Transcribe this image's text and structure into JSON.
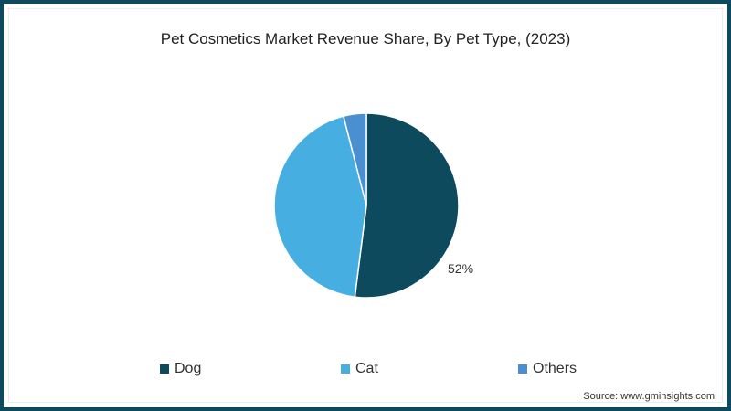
{
  "chart_data": {
    "type": "pie",
    "title": "Pet Cosmetics Market Revenue Share, By Pet Type, (2023)",
    "categories": [
      "Dog",
      "Cat",
      "Others"
    ],
    "values": [
      52,
      44,
      4
    ],
    "colors": [
      "#0d4a5e",
      "#46aee0",
      "#4a8fd0"
    ],
    "data_labels": [
      {
        "category": "Dog",
        "text": "52%"
      }
    ],
    "legend_position": "bottom",
    "start_angle": "12 o'clock, clockwise"
  },
  "title": "Pet Cosmetics Market Revenue Share, By Pet Type, (2023)",
  "data_label": "52%",
  "legend": [
    {
      "label": "Dog",
      "color": "#0d4a5e"
    },
    {
      "label": "Cat",
      "color": "#46aee0"
    },
    {
      "label": "Others",
      "color": "#4a8fd0"
    }
  ],
  "source": "Source: www.gminsights.com",
  "colors": {
    "border": "#0d4a5e"
  }
}
